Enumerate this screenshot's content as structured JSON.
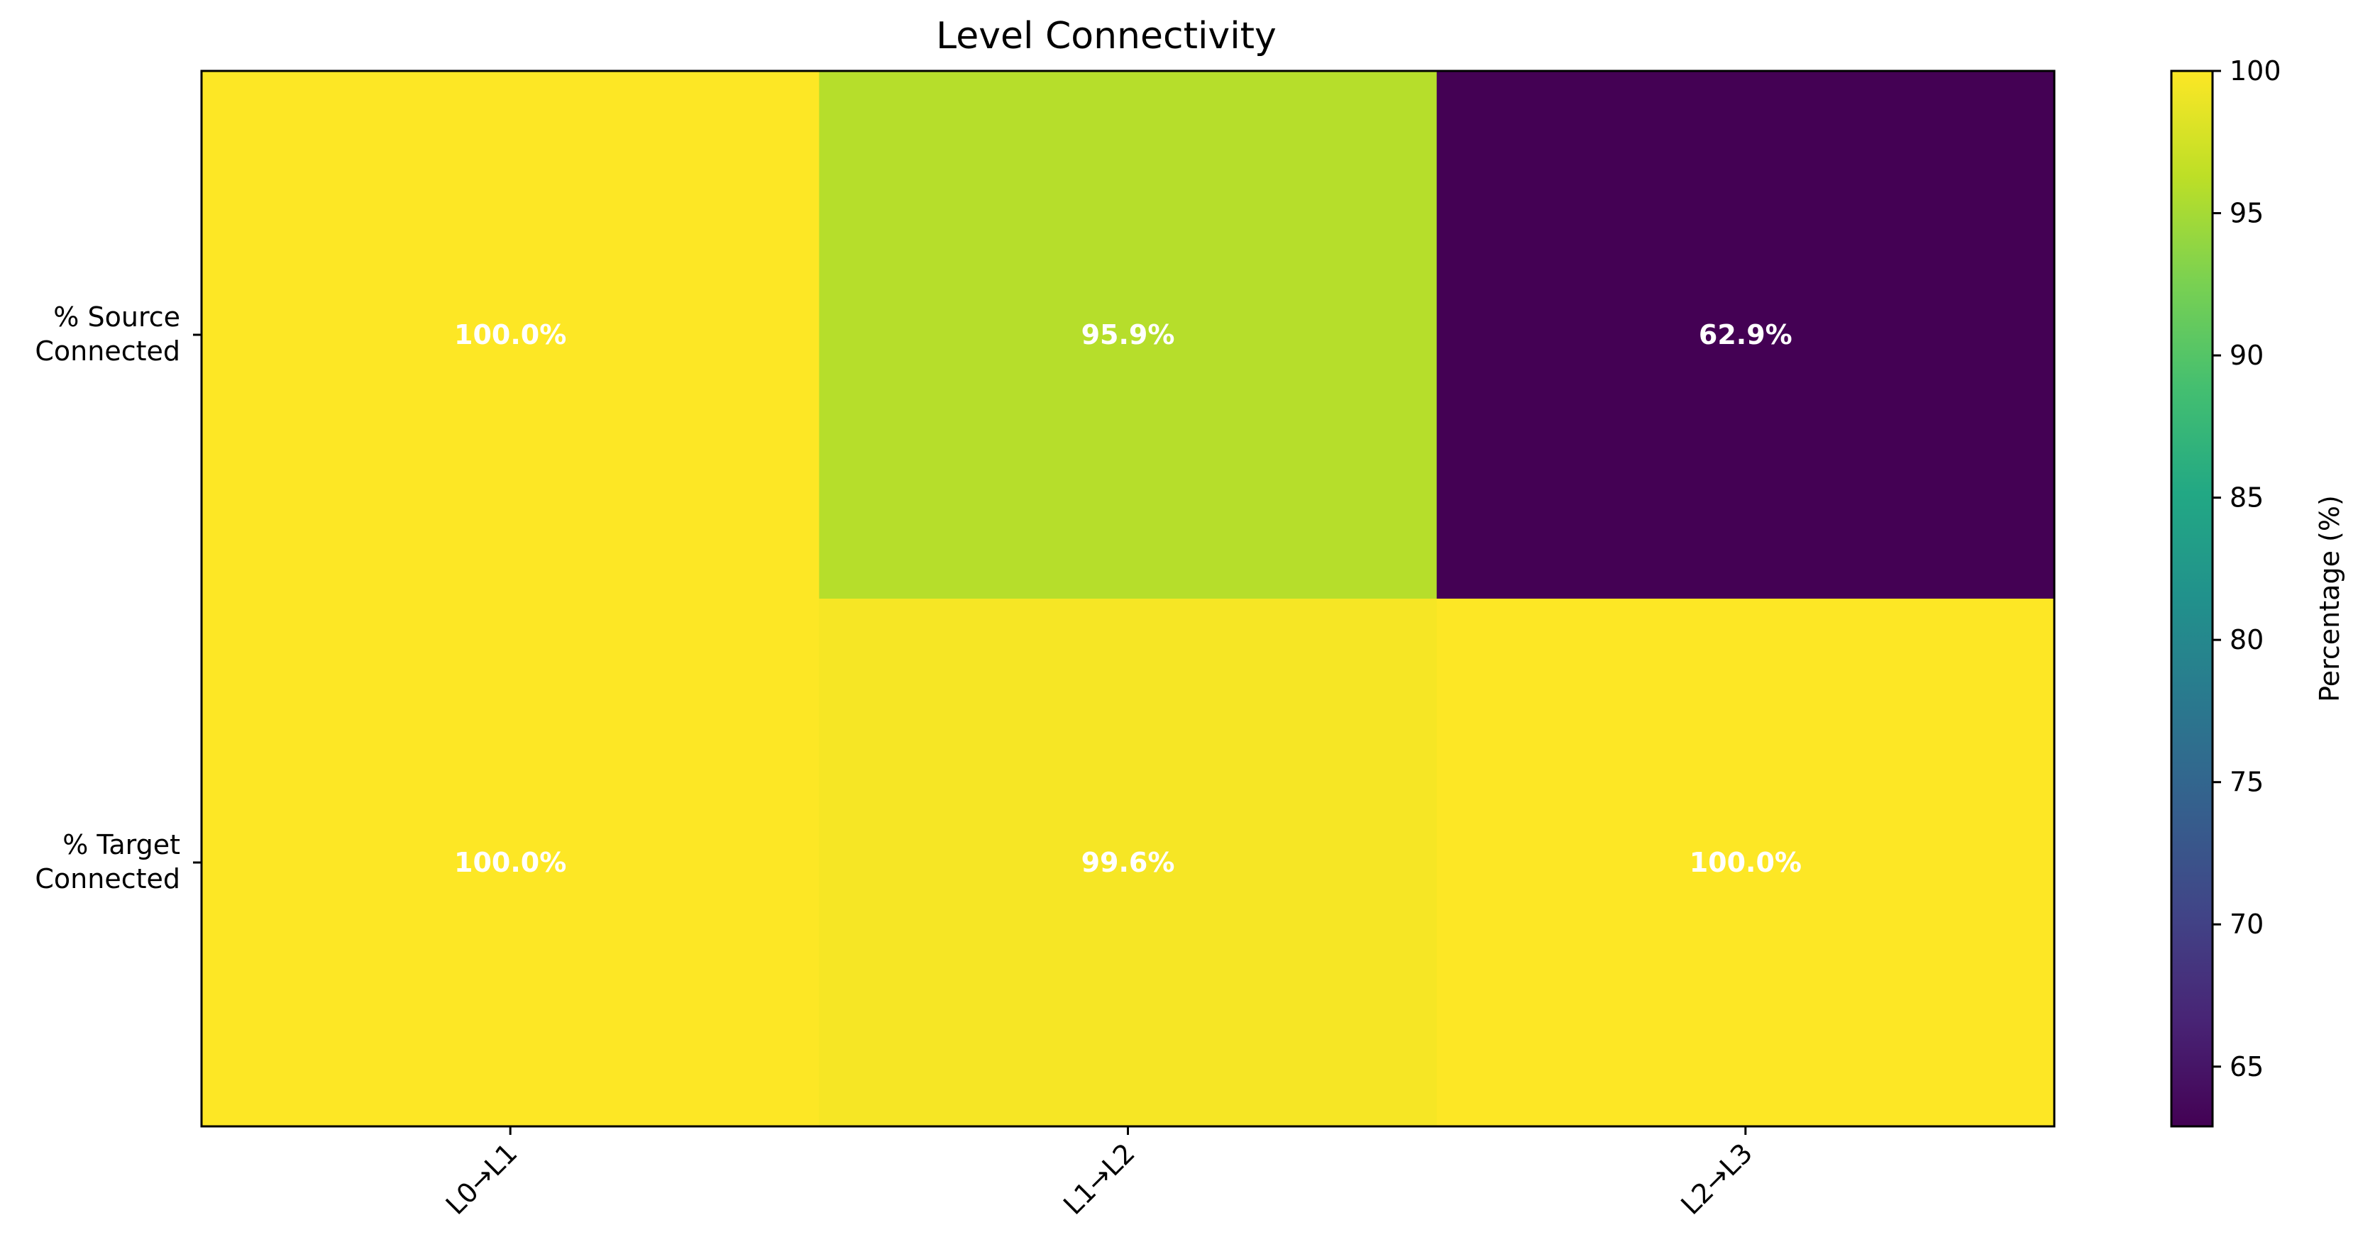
{
  "chart_data": {
    "type": "heatmap",
    "title": "Level Connectivity",
    "x_categories": [
      "L0→L1",
      "L1→L2",
      "L2→L3"
    ],
    "y_categories": [
      "% Source\nConnected",
      "% Target\nConnected"
    ],
    "values": [
      [
        100.0,
        95.9,
        62.9
      ],
      [
        100.0,
        99.6,
        100.0
      ]
    ],
    "cell_labels": [
      [
        "100.0%",
        "95.9%",
        "62.9%"
      ],
      [
        "100.0%",
        "99.6%",
        "100.0%"
      ]
    ],
    "colormap": "viridis",
    "vmin": 62.9,
    "vmax": 100,
    "colorbar": {
      "label": "Percentage (%)",
      "ticks": [
        65,
        70,
        75,
        80,
        85,
        90,
        95,
        100
      ]
    },
    "xtick_rotation": 45,
    "label_color": "#ffffff"
  }
}
